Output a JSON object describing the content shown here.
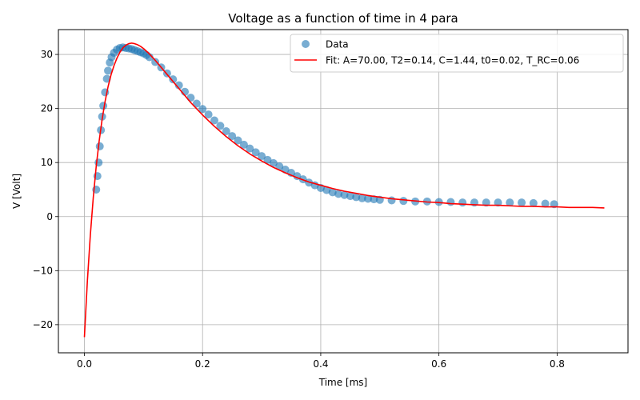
{
  "chart_data": {
    "type": "scatter",
    "title": "Voltage as a function of time in 4 para",
    "xlabel": "Time [ms]",
    "ylabel": "V [Volt]",
    "xlim": [
      -0.044,
      0.92
    ],
    "ylim": [
      -25.2,
      34.6
    ],
    "xticks": [
      0.0,
      0.2,
      0.4,
      0.6,
      0.8
    ],
    "xtick_labels": [
      "0.0",
      "0.2",
      "0.4",
      "0.6",
      "0.8"
    ],
    "yticks": [
      -20,
      -10,
      0,
      10,
      20,
      30
    ],
    "ytick_labels": [
      "−20",
      "−10",
      "0",
      "10",
      "20",
      "30"
    ],
    "grid": true,
    "legend_position": "top-right",
    "colors": {
      "data": "#1f77b4",
      "fit": "#ff0000",
      "grid": "#b0b0b0"
    },
    "series": [
      {
        "name": "Data",
        "kind": "scatter",
        "x": [
          0.02,
          0.022,
          0.024,
          0.026,
          0.028,
          0.03,
          0.032,
          0.035,
          0.038,
          0.04,
          0.043,
          0.046,
          0.05,
          0.055,
          0.06,
          0.065,
          0.07,
          0.075,
          0.08,
          0.085,
          0.09,
          0.095,
          0.1,
          0.105,
          0.11,
          0.12,
          0.13,
          0.14,
          0.15,
          0.16,
          0.17,
          0.18,
          0.19,
          0.2,
          0.21,
          0.22,
          0.23,
          0.24,
          0.25,
          0.26,
          0.27,
          0.28,
          0.29,
          0.3,
          0.31,
          0.32,
          0.33,
          0.34,
          0.35,
          0.36,
          0.37,
          0.38,
          0.39,
          0.4,
          0.41,
          0.42,
          0.43,
          0.44,
          0.45,
          0.46,
          0.47,
          0.48,
          0.49,
          0.5,
          0.52,
          0.54,
          0.56,
          0.58,
          0.6,
          0.62,
          0.64,
          0.66,
          0.68,
          0.7,
          0.72,
          0.74,
          0.76,
          0.78,
          0.795
        ],
        "y": [
          5.0,
          7.5,
          10.0,
          13.0,
          16.0,
          18.5,
          20.5,
          23.0,
          25.5,
          27.0,
          28.5,
          29.5,
          30.3,
          30.9,
          31.2,
          31.3,
          31.2,
          31.1,
          31.0,
          30.8,
          30.6,
          30.4,
          30.2,
          29.9,
          29.5,
          28.6,
          27.6,
          26.5,
          25.4,
          24.3,
          23.1,
          22.0,
          20.9,
          19.9,
          18.9,
          17.8,
          16.8,
          15.8,
          14.9,
          14.1,
          13.3,
          12.6,
          11.9,
          11.2,
          10.5,
          9.9,
          9.3,
          8.7,
          8.1,
          7.5,
          6.9,
          6.3,
          5.8,
          5.3,
          4.9,
          4.5,
          4.2,
          4.0,
          3.8,
          3.6,
          3.4,
          3.3,
          3.2,
          3.1,
          3.0,
          2.9,
          2.8,
          2.8,
          2.7,
          2.7,
          2.6,
          2.6,
          2.6,
          2.6,
          2.6,
          2.6,
          2.5,
          2.4,
          2.3
        ]
      },
      {
        "name": "Fit: A=70.00, T2=0.14, C=1.44, t0=0.02, T_RC=0.06",
        "kind": "line",
        "x": [
          0.0,
          0.005,
          0.01,
          0.015,
          0.02,
          0.025,
          0.03,
          0.035,
          0.04,
          0.045,
          0.05,
          0.055,
          0.06,
          0.065,
          0.07,
          0.075,
          0.08,
          0.085,
          0.09,
          0.095,
          0.1,
          0.11,
          0.12,
          0.13,
          0.14,
          0.15,
          0.16,
          0.18,
          0.2,
          0.22,
          0.24,
          0.26,
          0.28,
          0.3,
          0.32,
          0.34,
          0.36,
          0.38,
          0.4,
          0.42,
          0.44,
          0.46,
          0.48,
          0.5,
          0.52,
          0.54,
          0.56,
          0.58,
          0.6,
          0.62,
          0.64,
          0.66,
          0.68,
          0.7,
          0.72,
          0.74,
          0.76,
          0.78,
          0.8,
          0.82,
          0.84,
          0.86,
          0.88
        ],
        "y": [
          -22.3,
          -12.0,
          -3.5,
          3.5,
          9.3,
          14.0,
          18.0,
          21.3,
          24.0,
          26.2,
          27.9,
          29.3,
          30.4,
          31.2,
          31.7,
          32.0,
          32.1,
          32.0,
          31.8,
          31.5,
          31.1,
          30.1,
          28.9,
          27.6,
          26.3,
          25.0,
          23.7,
          21.1,
          18.8,
          16.7,
          14.8,
          13.1,
          11.6,
          10.3,
          9.1,
          8.1,
          7.2,
          6.4,
          5.8,
          5.2,
          4.7,
          4.3,
          3.9,
          3.6,
          3.3,
          3.1,
          2.9,
          2.7,
          2.6,
          2.4,
          2.3,
          2.2,
          2.1,
          2.1,
          2.0,
          1.9,
          1.9,
          1.8,
          1.8,
          1.7,
          1.7,
          1.7,
          1.6
        ]
      }
    ]
  }
}
